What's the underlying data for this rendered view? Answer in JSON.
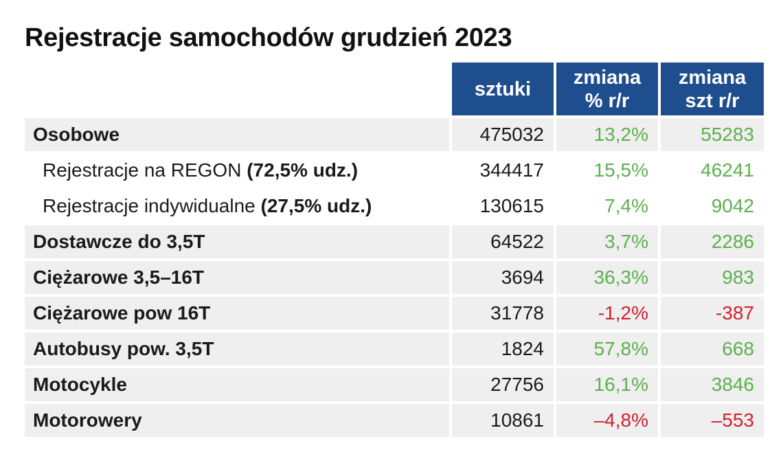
{
  "title": "Rejestracje samochodów grudzień 2023",
  "headers": {
    "col1": "sztuki",
    "col2_line1": "zmiana",
    "col2_line2": "% r/r",
    "col3_line1": "zmiana",
    "col3_line2": "szt r/r"
  },
  "colors": {
    "header_bg": "#1f4e8f",
    "positive": "#5db04e",
    "negative": "#d0212f",
    "row_shade": "#efefef"
  },
  "rows": [
    {
      "label": "Osobowe",
      "note": "",
      "sztuki": "475032",
      "pct": "13,2%",
      "szt": "55283",
      "sign": "pos",
      "style": "main"
    },
    {
      "label": "Rejestracje na REGON ",
      "note": "(72,5% udz.)",
      "sztuki": "344417",
      "pct": "15,5%",
      "szt": "46241",
      "sign": "pos",
      "style": "sub"
    },
    {
      "label": "Rejestracje indywidualne ",
      "note": "(27,5% udz.)",
      "sztuki": "130615",
      "pct": "7,4%",
      "szt": "9042",
      "sign": "pos",
      "style": "sub"
    },
    {
      "label": "Dostawcze do 3,5T",
      "note": "",
      "sztuki": "64522",
      "pct": "3,7%",
      "szt": "2286",
      "sign": "pos",
      "style": "main"
    },
    {
      "label": "Ciężarowe 3,5–16T",
      "note": "",
      "sztuki": "3694",
      "pct": "36,3%",
      "szt": "983",
      "sign": "pos",
      "style": "main"
    },
    {
      "label": "Ciężarowe pow 16T",
      "note": "",
      "sztuki": "31778",
      "pct": "-1,2%",
      "szt": "-387",
      "sign": "neg",
      "style": "main"
    },
    {
      "label": "Autobusy pow. 3,5T",
      "note": "",
      "sztuki": "1824",
      "pct": "57,8%",
      "szt": "668",
      "sign": "pos",
      "style": "main"
    },
    {
      "label": "Motocykle",
      "note": "",
      "sztuki": "27756",
      "pct": "16,1%",
      "szt": "3846",
      "sign": "pos",
      "style": "main"
    },
    {
      "label": "Motorowery",
      "note": "",
      "sztuki": "10861",
      "pct": "–4,8%",
      "szt": "–553",
      "sign": "neg",
      "style": "main"
    }
  ]
}
